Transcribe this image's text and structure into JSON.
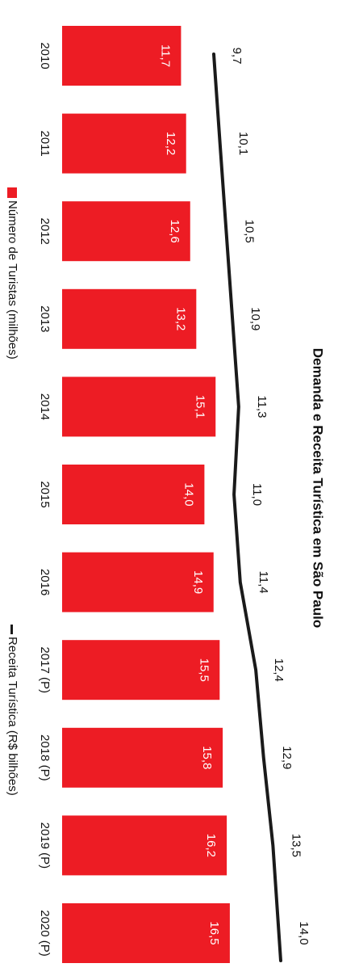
{
  "chart_data": {
    "type": "bar",
    "title": "Demanda e Receita Turística em São Paulo",
    "categories": [
      "2010",
      "2011",
      "2012",
      "2013",
      "2014",
      "2015",
      "2016",
      "2017 (P)",
      "2018 (P)",
      "2019 (P)",
      "2020 (P)"
    ],
    "series": [
      {
        "name": "Número de Turistas (milhões)",
        "type": "bar",
        "values": [
          11.7,
          12.2,
          12.6,
          13.2,
          15.1,
          14.0,
          14.9,
          15.5,
          15.8,
          16.2,
          16.5
        ],
        "labels": [
          "11,7",
          "12,2",
          "12,6",
          "13,2",
          "15,1",
          "14,0",
          "14,9",
          "15,5",
          "15,8",
          "16,2",
          "16,5"
        ]
      },
      {
        "name": "Receita Turística (R$ bilhões)",
        "type": "line",
        "values": [
          9.7,
          10.1,
          10.5,
          10.9,
          11.3,
          11.0,
          11.4,
          12.4,
          12.9,
          13.5,
          14.0
        ],
        "labels": [
          "9,7",
          "10,1",
          "10,5",
          "10,9",
          "11,3",
          "11,0",
          "11,4",
          "12,4",
          "12,9",
          "13,5",
          "14,0"
        ]
      }
    ],
    "orientation": "rotated 90° clockwise",
    "legend_position": "left",
    "grid": false
  },
  "colors": {
    "bar": "#ed1c24",
    "line": "#1a1a1a",
    "text": "#111111",
    "bar_label": "#ffffff"
  }
}
